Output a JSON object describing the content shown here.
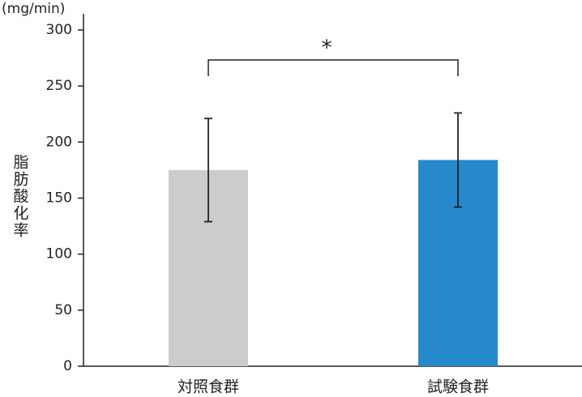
{
  "chart_data": {
    "type": "bar",
    "unit_label": "(mg/min)",
    "y_label": "脂肪酸化率",
    "annotation": "*",
    "categories": [
      "対照食群",
      "試験食群"
    ],
    "values": [
      175,
      184
    ],
    "errors": [
      46,
      42
    ],
    "colors": [
      "#cccccc",
      "#2589cb"
    ],
    "ylim": [
      0,
      300
    ],
    "yticks": [
      0,
      50,
      100,
      150,
      200,
      250,
      300
    ],
    "grid": false
  }
}
